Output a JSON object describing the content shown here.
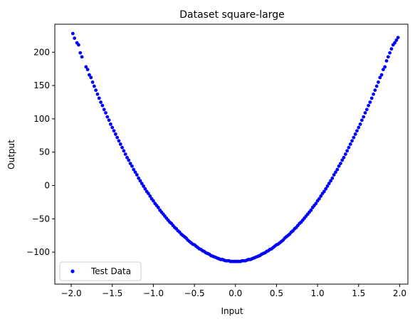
{
  "chart_data": {
    "type": "scatter",
    "title": "Dataset square-large",
    "xlabel": "Input",
    "ylabel": "Output",
    "xlim": [
      -2.2,
      2.1
    ],
    "ylim": [
      -148,
      242
    ],
    "xticks": [
      -2.0,
      -1.5,
      -1.0,
      -0.5,
      0.0,
      0.5,
      1.0,
      1.5,
      2.0
    ],
    "xtick_labels": [
      "−2.0",
      "−1.5",
      "−1.0",
      "−0.5",
      "0.0",
      "0.5",
      "1.0",
      "1.5",
      "2.0"
    ],
    "yticks": [
      -100,
      -50,
      0,
      50,
      100,
      150,
      200
    ],
    "ytick_labels": [
      "−100",
      "−50",
      "0",
      "50",
      "100",
      "150",
      "200"
    ],
    "grid": false,
    "legend_position": "lower-left",
    "series": [
      {
        "name": "Test Data",
        "color": "#0000ff",
        "marker": "circle",
        "points": [
          [
            -1.98,
            228
          ],
          [
            -1.96,
            221
          ],
          [
            -1.93,
            214
          ],
          [
            -1.91,
            211
          ],
          [
            -1.89,
            199
          ],
          [
            -1.87,
            193
          ],
          [
            -1.82,
            178
          ],
          [
            -1.8,
            174
          ],
          [
            -1.78,
            166
          ],
          [
            -1.76,
            162
          ],
          [
            -1.74,
            155
          ],
          [
            -1.72,
            149
          ],
          [
            -1.7,
            143
          ],
          [
            -1.68,
            137
          ],
          [
            -1.66,
            131
          ],
          [
            -1.64,
            125
          ],
          [
            -1.62,
            120
          ],
          [
            -1.6,
            114
          ],
          [
            -1.58,
            109
          ],
          [
            -1.56,
            103
          ],
          [
            -1.54,
            98
          ],
          [
            -1.52,
            92
          ],
          [
            -1.5,
            87
          ],
          [
            -1.48,
            82
          ],
          [
            -1.46,
            77
          ],
          [
            -1.44,
            72
          ],
          [
            -1.42,
            67
          ],
          [
            -1.4,
            62
          ],
          [
            -1.38,
            57
          ],
          [
            -1.36,
            52
          ],
          [
            -1.34,
            47
          ],
          [
            -1.32,
            42
          ],
          [
            -1.3,
            38
          ],
          [
            -1.28,
            33
          ],
          [
            -1.26,
            29
          ],
          [
            -1.24,
            24
          ],
          [
            -1.22,
            20
          ],
          [
            -1.2,
            16
          ],
          [
            -1.18,
            11
          ],
          [
            -1.16,
            7
          ],
          [
            -1.14,
            3
          ],
          [
            -1.12,
            -1
          ],
          [
            -1.1,
            -5
          ],
          [
            -1.08,
            -9
          ],
          [
            -1.06,
            -12
          ],
          [
            -1.04,
            -16
          ],
          [
            -1.02,
            -20
          ],
          [
            -1.0,
            -23
          ],
          [
            -0.98,
            -27
          ],
          [
            -0.96,
            -30
          ],
          [
            -0.94,
            -33
          ],
          [
            -0.92,
            -37
          ],
          [
            -0.9,
            -40
          ],
          [
            -0.88,
            -43
          ],
          [
            -0.86,
            -46
          ],
          [
            -0.84,
            -49
          ],
          [
            -0.82,
            -52
          ],
          [
            -0.8,
            -55
          ],
          [
            -0.78,
            -57
          ],
          [
            -0.76,
            -60
          ],
          [
            -0.74,
            -63
          ],
          [
            -0.72,
            -65
          ],
          [
            -0.7,
            -68
          ],
          [
            -0.68,
            -70
          ],
          [
            -0.66,
            -73
          ],
          [
            -0.64,
            -75
          ],
          [
            -0.62,
            -77
          ],
          [
            -0.6,
            -79
          ],
          [
            -0.58,
            -82
          ],
          [
            -0.56,
            -84
          ],
          [
            -0.54,
            -86
          ],
          [
            -0.52,
            -88
          ],
          [
            -0.5,
            -89
          ],
          [
            -0.48,
            -91
          ],
          [
            -0.46,
            -93
          ],
          [
            -0.44,
            -95
          ],
          [
            -0.42,
            -96
          ],
          [
            -0.4,
            -98
          ],
          [
            -0.38,
            -99
          ],
          [
            -0.36,
            -101
          ],
          [
            -0.34,
            -102
          ],
          [
            -0.32,
            -103
          ],
          [
            -0.3,
            -105
          ],
          [
            -0.28,
            -106
          ],
          [
            -0.26,
            -107
          ],
          [
            -0.24,
            -108
          ],
          [
            -0.22,
            -109
          ],
          [
            -0.2,
            -110
          ],
          [
            -0.18,
            -111
          ],
          [
            -0.16,
            -111
          ],
          [
            -0.14,
            -112
          ],
          [
            -0.12,
            -113
          ],
          [
            -0.1,
            -113
          ],
          [
            -0.08,
            -113
          ],
          [
            -0.06,
            -114
          ],
          [
            -0.04,
            -114
          ],
          [
            -0.02,
            -114
          ],
          [
            0.0,
            -114
          ],
          [
            0.02,
            -114
          ],
          [
            0.04,
            -114
          ],
          [
            0.06,
            -114
          ],
          [
            0.08,
            -113
          ],
          [
            0.1,
            -113
          ],
          [
            0.12,
            -113
          ],
          [
            0.14,
            -112
          ],
          [
            0.16,
            -111
          ],
          [
            0.18,
            -111
          ],
          [
            0.2,
            -110
          ],
          [
            0.22,
            -109
          ],
          [
            0.24,
            -108
          ],
          [
            0.26,
            -107
          ],
          [
            0.28,
            -106
          ],
          [
            0.3,
            -105
          ],
          [
            0.32,
            -103
          ],
          [
            0.34,
            -102
          ],
          [
            0.36,
            -101
          ],
          [
            0.38,
            -99
          ],
          [
            0.4,
            -98
          ],
          [
            0.42,
            -96
          ],
          [
            0.44,
            -95
          ],
          [
            0.46,
            -93
          ],
          [
            0.48,
            -91
          ],
          [
            0.5,
            -89
          ],
          [
            0.52,
            -88
          ],
          [
            0.54,
            -86
          ],
          [
            0.56,
            -84
          ],
          [
            0.58,
            -82
          ],
          [
            0.6,
            -79
          ],
          [
            0.62,
            -77
          ],
          [
            0.64,
            -75
          ],
          [
            0.66,
            -73
          ],
          [
            0.68,
            -70
          ],
          [
            0.7,
            -68
          ],
          [
            0.72,
            -65
          ],
          [
            0.74,
            -63
          ],
          [
            0.76,
            -60
          ],
          [
            0.78,
            -57
          ],
          [
            0.8,
            -55
          ],
          [
            0.82,
            -52
          ],
          [
            0.84,
            -49
          ],
          [
            0.86,
            -46
          ],
          [
            0.88,
            -43
          ],
          [
            0.9,
            -40
          ],
          [
            0.92,
            -37
          ],
          [
            0.94,
            -33
          ],
          [
            0.96,
            -30
          ],
          [
            0.98,
            -27
          ],
          [
            1.0,
            -23
          ],
          [
            1.02,
            -20
          ],
          [
            1.04,
            -16
          ],
          [
            1.06,
            -12
          ],
          [
            1.08,
            -9
          ],
          [
            1.1,
            -5
          ],
          [
            1.12,
            -1
          ],
          [
            1.14,
            3
          ],
          [
            1.16,
            7
          ],
          [
            1.18,
            11
          ],
          [
            1.2,
            16
          ],
          [
            1.22,
            20
          ],
          [
            1.24,
            24
          ],
          [
            1.26,
            29
          ],
          [
            1.28,
            33
          ],
          [
            1.3,
            38
          ],
          [
            1.32,
            42
          ],
          [
            1.34,
            47
          ],
          [
            1.36,
            52
          ],
          [
            1.38,
            57
          ],
          [
            1.4,
            62
          ],
          [
            1.42,
            67
          ],
          [
            1.44,
            72
          ],
          [
            1.46,
            77
          ],
          [
            1.48,
            82
          ],
          [
            1.5,
            87
          ],
          [
            1.52,
            92
          ],
          [
            1.54,
            98
          ],
          [
            1.56,
            103
          ],
          [
            1.58,
            109
          ],
          [
            1.6,
            114
          ],
          [
            1.62,
            120
          ],
          [
            1.64,
            125
          ],
          [
            1.66,
            131
          ],
          [
            1.68,
            137
          ],
          [
            1.7,
            143
          ],
          [
            1.72,
            149
          ],
          [
            1.74,
            155
          ],
          [
            1.76,
            162
          ],
          [
            1.78,
            166
          ],
          [
            1.8,
            174
          ],
          [
            1.82,
            178
          ],
          [
            1.84,
            187
          ],
          [
            1.86,
            193
          ],
          [
            1.88,
            199
          ],
          [
            1.9,
            205
          ],
          [
            1.92,
            211
          ],
          [
            1.94,
            214
          ],
          [
            1.96,
            218
          ],
          [
            1.98,
            222
          ]
        ]
      }
    ]
  }
}
